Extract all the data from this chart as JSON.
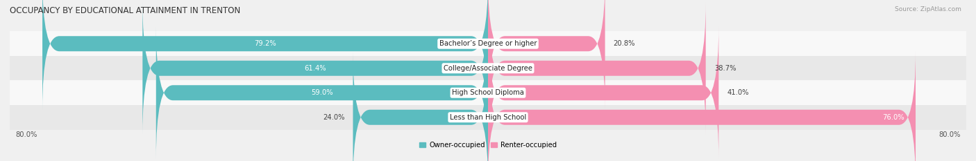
{
  "title": "OCCUPANCY BY EDUCATIONAL ATTAINMENT IN TRENTON",
  "source": "Source: ZipAtlas.com",
  "categories": [
    "Less than High School",
    "High School Diploma",
    "College/Associate Degree",
    "Bachelor’s Degree or higher"
  ],
  "owner_values": [
    24.0,
    59.0,
    61.4,
    79.2
  ],
  "renter_values": [
    76.0,
    41.0,
    38.7,
    20.8
  ],
  "owner_color": "#5bbcbf",
  "renter_color": "#f48fb1",
  "bar_height": 0.62,
  "background_color": "#f0f0f0",
  "row_bg_even": "#f8f8f8",
  "row_bg_odd": "#e8e8e8",
  "x_left_label": "80.0%",
  "x_right_label": "80.0%",
  "legend_owner": "Owner-occupied",
  "legend_renter": "Renter-occupied",
  "title_fontsize": 8.5,
  "label_fontsize": 7.2,
  "value_fontsize": 7.2,
  "source_fontsize": 6.5,
  "xlim": 80
}
